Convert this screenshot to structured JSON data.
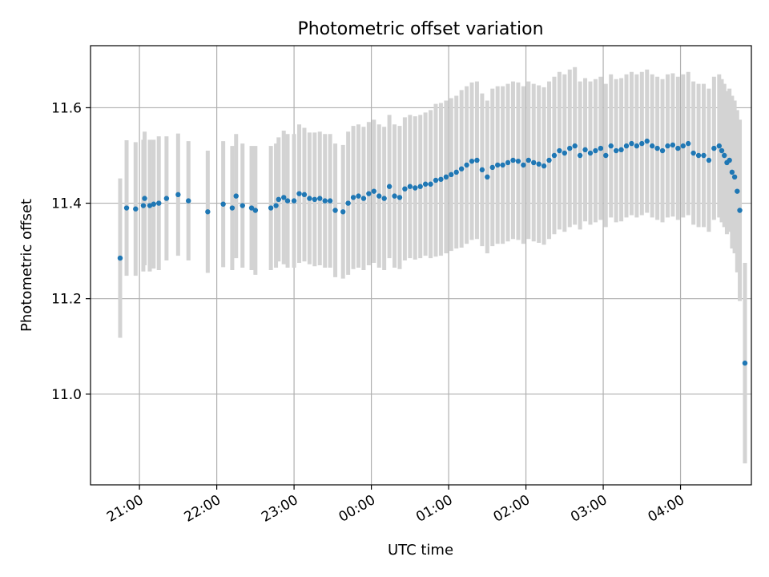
{
  "chart_data": {
    "type": "scatter",
    "title": "Photometric offset variation",
    "xlabel": "UTC time",
    "ylabel": "Photometric offset",
    "x_unit": "hours (UTC, wrapping past midnight)",
    "xlim": [
      "20:22",
      "04:55"
    ],
    "ylim": [
      10.81,
      11.73
    ],
    "x_ticks": [
      "21:00",
      "22:00",
      "23:00",
      "00:00",
      "01:00",
      "02:00",
      "03:00",
      "04:00"
    ],
    "y_ticks": [
      "11.0",
      "11.2",
      "11.4",
      "11.6"
    ],
    "grid": true,
    "colors": {
      "points": "#1f77b4",
      "errorbars": "#d3d3d3",
      "grid": "#b0b0b0"
    },
    "series": [
      {
        "x": [
          "20:45",
          "20:50",
          "20:57",
          "21:03",
          "21:04",
          "21:08",
          "21:11",
          "21:15",
          "21:21",
          "21:30",
          "21:38",
          "21:53",
          "22:05",
          "22:12",
          "22:15",
          "22:20",
          "22:27",
          "22:30",
          "22:42",
          "22:46",
          "22:48",
          "22:52",
          "22:55",
          "23:00",
          "23:04",
          "23:08",
          "23:12",
          "23:16",
          "23:20",
          "23:24",
          "23:28",
          "23:32",
          "23:38",
          "23:42",
          "23:46",
          "23:50",
          "23:54",
          "23:58",
          "00:02",
          "00:06",
          "00:10",
          "00:14",
          "00:18",
          "00:22",
          "00:26",
          "00:30",
          "00:34",
          "00:38",
          "00:42",
          "00:46",
          "00:50",
          "00:54",
          "00:58",
          "01:02",
          "01:06",
          "01:10",
          "01:14",
          "01:18",
          "01:22",
          "01:26",
          "01:30",
          "01:34",
          "01:38",
          "01:42",
          "01:46",
          "01:50",
          "01:54",
          "01:58",
          "02:02",
          "02:06",
          "02:10",
          "02:14",
          "02:18",
          "02:22",
          "02:26",
          "02:30",
          "02:34",
          "02:38",
          "02:42",
          "02:46",
          "02:50",
          "02:54",
          "02:58",
          "03:02",
          "03:06",
          "03:10",
          "03:14",
          "03:18",
          "03:22",
          "03:26",
          "03:30",
          "03:34",
          "03:38",
          "03:42",
          "03:46",
          "03:50",
          "03:54",
          "03:58",
          "04:02",
          "04:06",
          "04:10",
          "04:14",
          "04:18",
          "04:22",
          "04:26",
          "04:30",
          "04:32",
          "04:34",
          "04:36",
          "04:38",
          "04:40",
          "04:42",
          "04:44",
          "04:46",
          "04:50"
        ],
        "y": [
          11.285,
          11.39,
          11.388,
          11.395,
          11.41,
          11.395,
          11.398,
          11.4,
          11.41,
          11.418,
          11.405,
          11.382,
          11.398,
          11.39,
          11.415,
          11.395,
          11.39,
          11.385,
          11.39,
          11.395,
          11.408,
          11.412,
          11.405,
          11.405,
          11.42,
          11.418,
          11.41,
          11.408,
          11.41,
          11.405,
          11.405,
          11.385,
          11.382,
          11.4,
          11.412,
          11.415,
          11.41,
          11.42,
          11.425,
          11.415,
          11.41,
          11.435,
          11.415,
          11.412,
          11.43,
          11.435,
          11.432,
          11.435,
          11.44,
          11.44,
          11.448,
          11.45,
          11.455,
          11.46,
          11.465,
          11.472,
          11.48,
          11.488,
          11.49,
          11.47,
          11.455,
          11.475,
          11.48,
          11.48,
          11.485,
          11.49,
          11.488,
          11.48,
          11.49,
          11.485,
          11.482,
          11.478,
          11.49,
          11.5,
          11.51,
          11.505,
          11.515,
          11.52,
          11.5,
          11.512,
          11.505,
          11.51,
          11.515,
          11.5,
          11.52,
          11.51,
          11.512,
          11.52,
          11.525,
          11.52,
          11.525,
          11.53,
          11.52,
          11.515,
          11.51,
          11.52,
          11.522,
          11.515,
          11.52,
          11.525,
          11.505,
          11.5,
          11.5,
          11.49,
          11.515,
          11.52,
          11.51,
          11.5,
          11.485,
          11.49,
          11.465,
          11.455,
          11.425,
          11.385,
          11.065
        ],
        "yerr": [
          0.167,
          0.142,
          0.14,
          0.138,
          0.14,
          0.138,
          0.135,
          0.14,
          0.13,
          0.128,
          0.125,
          0.128,
          0.132,
          0.13,
          0.13,
          0.13,
          0.13,
          0.135,
          0.13,
          0.13,
          0.13,
          0.14,
          0.14,
          0.14,
          0.145,
          0.14,
          0.138,
          0.14,
          0.14,
          0.14,
          0.14,
          0.14,
          0.14,
          0.15,
          0.15,
          0.15,
          0.15,
          0.15,
          0.15,
          0.15,
          0.15,
          0.15,
          0.15,
          0.15,
          0.15,
          0.15,
          0.15,
          0.15,
          0.15,
          0.155,
          0.16,
          0.16,
          0.16,
          0.16,
          0.16,
          0.165,
          0.165,
          0.165,
          0.165,
          0.16,
          0.16,
          0.165,
          0.165,
          0.165,
          0.165,
          0.165,
          0.165,
          0.165,
          0.165,
          0.165,
          0.165,
          0.165,
          0.165,
          0.165,
          0.165,
          0.165,
          0.165,
          0.165,
          0.155,
          0.15,
          0.15,
          0.15,
          0.15,
          0.15,
          0.15,
          0.15,
          0.15,
          0.15,
          0.15,
          0.15,
          0.15,
          0.15,
          0.15,
          0.15,
          0.15,
          0.15,
          0.15,
          0.15,
          0.15,
          0.15,
          0.15,
          0.15,
          0.15,
          0.15,
          0.15,
          0.15,
          0.15,
          0.15,
          0.15,
          0.15,
          0.16,
          0.16,
          0.17,
          0.19,
          0.21
        ]
      }
    ]
  }
}
